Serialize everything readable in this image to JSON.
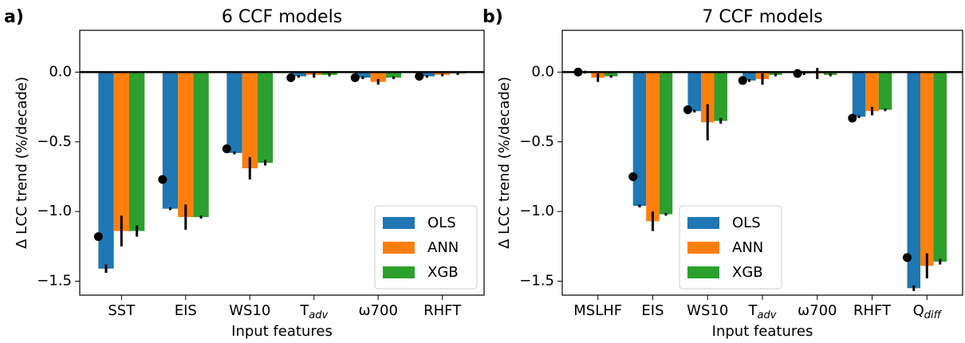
{
  "chart_data": [
    {
      "type": "bar",
      "panel_label": "a)",
      "title": "6 CCF models",
      "xlabel": "Input features",
      "ylabel": "Δ LCC trend (%/decade)",
      "categories": [
        "SST",
        "EIS",
        "WS10",
        {
          "base": "T",
          "sub": "adv"
        },
        "ω700",
        "RHFT"
      ],
      "series": [
        {
          "name": "OLS",
          "color": "#1f77b4",
          "values": [
            -1.41,
            -0.98,
            -0.58,
            -0.03,
            -0.04,
            -0.03
          ],
          "errors": [
            0.03,
            0.01,
            0.01,
            0.01,
            0.01,
            0.01
          ]
        },
        {
          "name": "ANN",
          "color": "#ff7f0e",
          "values": [
            -1.14,
            -1.04,
            -0.69,
            -0.02,
            -0.07,
            -0.02
          ],
          "errors": [
            0.11,
            0.09,
            0.08,
            0.02,
            0.02,
            0.01
          ]
        },
        {
          "name": "XGB",
          "color": "#2ca02c",
          "values": [
            -1.14,
            -1.04,
            -0.65,
            -0.02,
            -0.04,
            -0.01
          ],
          "errors": [
            0.04,
            0.01,
            0.02,
            0.01,
            0.01,
            0.01
          ]
        }
      ],
      "dot_values": [
        -1.18,
        -0.77,
        -0.55,
        -0.04,
        -0.04,
        -0.03
      ],
      "dot_color": "#000000",
      "ylim": [
        -1.6,
        0.3
      ],
      "yticks": [
        {
          "value": -1.5,
          "label": "−1.5"
        },
        {
          "value": -1.0,
          "label": "−1.0"
        },
        {
          "value": -0.5,
          "label": "−0.5"
        },
        {
          "value": 0,
          "label": "0.0"
        }
      ],
      "legend": "lower right"
    },
    {
      "type": "bar",
      "panel_label": "b)",
      "title": "7 CCF models",
      "xlabel": "Input features",
      "ylabel": "Δ LCC trend (%/decade)",
      "categories": [
        "MSLHF",
        "EIS",
        "WS10",
        {
          "base": "T",
          "sub": "adv"
        },
        "ω700",
        "RHFT",
        {
          "base": "Q",
          "sub": "diff"
        }
      ],
      "series": [
        {
          "name": "OLS",
          "color": "#1f77b4",
          "values": [
            0.0,
            -0.96,
            -0.28,
            -0.06,
            -0.01,
            -0.32,
            -1.55
          ],
          "errors": [
            0.01,
            0.01,
            0.01,
            0.01,
            0.01,
            0.01,
            0.02
          ]
        },
        {
          "name": "ANN",
          "color": "#ff7f0e",
          "values": [
            -0.04,
            -1.07,
            -0.36,
            -0.05,
            -0.01,
            -0.28,
            -1.39
          ],
          "errors": [
            0.03,
            0.07,
            0.13,
            0.04,
            0.04,
            0.03,
            0.09
          ]
        },
        {
          "name": "XGB",
          "color": "#2ca02c",
          "values": [
            -0.03,
            -1.02,
            -0.35,
            -0.02,
            -0.02,
            -0.27,
            -1.36
          ],
          "errors": [
            0.01,
            0.01,
            0.02,
            0.01,
            0.01,
            0.01,
            0.02
          ]
        }
      ],
      "dot_values": [
        0.0,
        -0.75,
        -0.27,
        -0.06,
        -0.01,
        -0.33,
        -1.33
      ],
      "dot_color": "#000000",
      "ylim": [
        -1.6,
        0.3
      ],
      "yticks": [
        {
          "value": -1.5,
          "label": "−1.5"
        },
        {
          "value": -1.0,
          "label": "−1.0"
        },
        {
          "value": -0.5,
          "label": "−0.5"
        },
        {
          "value": 0,
          "label": "0.0"
        }
      ],
      "legend": "lower center"
    }
  ]
}
